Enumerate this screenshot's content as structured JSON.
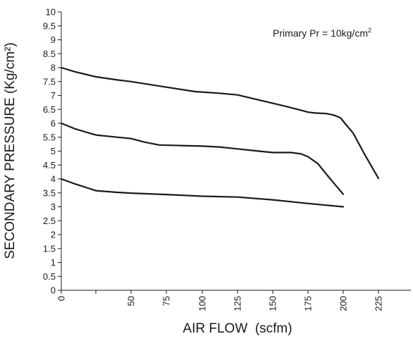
{
  "chart_data": {
    "type": "line",
    "title": "",
    "xlabel": "AIR FLOW  (scfm)",
    "ylabel": "SECONDARY PRESSURE (Kg/cm²)",
    "annotation": {
      "text": "Primary Pr = 10kg/cm",
      "superscript": "2",
      "placement": "top-right"
    },
    "xlim": [
      0,
      240
    ],
    "ylim": [
      0,
      10
    ],
    "x_ticks": [
      {
        "value": 0,
        "label": "0"
      },
      {
        "value": 50,
        "label": "50"
      },
      {
        "value": 75,
        "label": "75"
      },
      {
        "value": 100,
        "label": "100"
      },
      {
        "value": 125,
        "label": "125"
      },
      {
        "value": 150,
        "label": "150"
      },
      {
        "value": 175,
        "label": "175"
      },
      {
        "value": 200,
        "label": "200"
      },
      {
        "value": 225,
        "label": "225"
      }
    ],
    "x_minor_ticks": [
      25
    ],
    "y_ticks": [
      {
        "value": 0,
        "label": "0"
      },
      {
        "value": 0.5,
        "label": "0.5"
      },
      {
        "value": 1,
        "label": "1"
      },
      {
        "value": 1.5,
        "label": "1.5"
      },
      {
        "value": 2,
        "label": "2"
      },
      {
        "value": 2.5,
        "label": "2.5"
      },
      {
        "value": 3,
        "label": "3"
      },
      {
        "value": 3.5,
        "label": "3.5"
      },
      {
        "value": 4,
        "label": "4"
      },
      {
        "value": 4.5,
        "label": "4.5"
      },
      {
        "value": 5,
        "label": "5"
      },
      {
        "value": 5.5,
        "label": "5.5"
      },
      {
        "value": 6,
        "label": "6"
      },
      {
        "value": 6.5,
        "label": "6.5"
      },
      {
        "value": 7,
        "label": "7"
      },
      {
        "value": 7.5,
        "label": "7.5"
      },
      {
        "value": 8,
        "label": "8"
      },
      {
        "value": 8.5,
        "label": "8.5"
      },
      {
        "value": 9,
        "label": "9"
      },
      {
        "value": 9.5,
        "label": "9.5"
      },
      {
        "value": 10,
        "label": "10"
      }
    ],
    "grid": false,
    "legend": "none",
    "series": [
      {
        "x": [
          0,
          10,
          25,
          40,
          50,
          75,
          95,
          112,
          125,
          145,
          160,
          170,
          175,
          180,
          188,
          193,
          198,
          202,
          207,
          215,
          225
        ],
        "y": [
          8.0,
          7.85,
          7.67,
          7.56,
          7.5,
          7.3,
          7.14,
          7.08,
          7.02,
          6.78,
          6.6,
          6.47,
          6.4,
          6.37,
          6.35,
          6.3,
          6.2,
          5.95,
          5.65,
          4.9,
          4.02
        ]
      },
      {
        "x": [
          0,
          10,
          25,
          40,
          50,
          60,
          70,
          85,
          100,
          112,
          125,
          140,
          150,
          163,
          170,
          175,
          182,
          190,
          200
        ],
        "y": [
          6.0,
          5.8,
          5.58,
          5.5,
          5.45,
          5.32,
          5.22,
          5.2,
          5.18,
          5.15,
          5.08,
          5.0,
          4.95,
          4.95,
          4.9,
          4.8,
          4.55,
          4.05,
          3.45
        ]
      },
      {
        "x": [
          0,
          10,
          25,
          40,
          50,
          75,
          100,
          125,
          150,
          175,
          200
        ],
        "y": [
          4.0,
          3.82,
          3.58,
          3.52,
          3.49,
          3.44,
          3.38,
          3.35,
          3.25,
          3.12,
          3.0
        ]
      }
    ]
  }
}
